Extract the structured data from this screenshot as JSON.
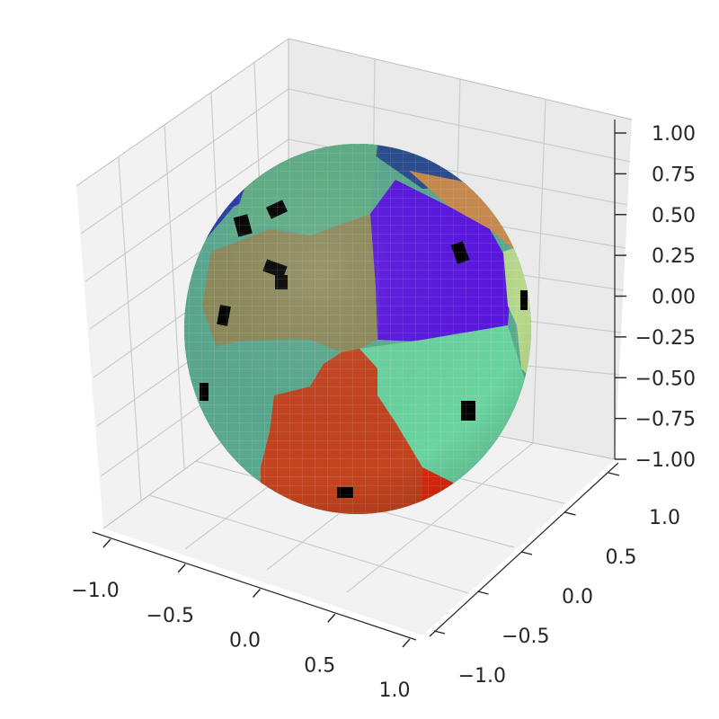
{
  "chart_data": {
    "type": "3d-surface",
    "title": "",
    "surface": "unit sphere with colored regions",
    "axes": {
      "x": {
        "range": [
          -1.0,
          1.0
        ],
        "ticks": [
          -1.0,
          -0.5,
          0.0,
          0.5,
          1.0
        ],
        "tick_labels": [
          "−1.0",
          "−0.5",
          "0.0",
          "0.5",
          "1.0"
        ],
        "label": ""
      },
      "y": {
        "range": [
          -1.0,
          1.0
        ],
        "ticks": [
          -1.0,
          -0.5,
          0.0,
          0.5,
          1.0
        ],
        "tick_labels": [
          "−1.0",
          "−0.5",
          "0.0",
          "0.5",
          "1.0"
        ],
        "label": ""
      },
      "z": {
        "range": [
          -1.0,
          1.0
        ],
        "ticks": [
          -1.0,
          -0.75,
          -0.5,
          -0.25,
          0.0,
          0.25,
          0.5,
          0.75,
          1.0
        ],
        "tick_labels": [
          "−1.00",
          "−0.75",
          "−0.50",
          "−0.25",
          "0.00",
          "0.25",
          "0.50",
          "0.75",
          "1.00"
        ],
        "label": ""
      }
    },
    "grid": true,
    "pane_color": "#f2f2f2",
    "region_colors": [
      "#2a4d8f",
      "#5a17e0",
      "#c88a4f",
      "#b6d88a",
      "#6ad3a0",
      "#5aa98f",
      "#8c8a5a",
      "#c4431f",
      "#e02a10",
      "#1f6ea0",
      "#6aa86a"
    ]
  }
}
